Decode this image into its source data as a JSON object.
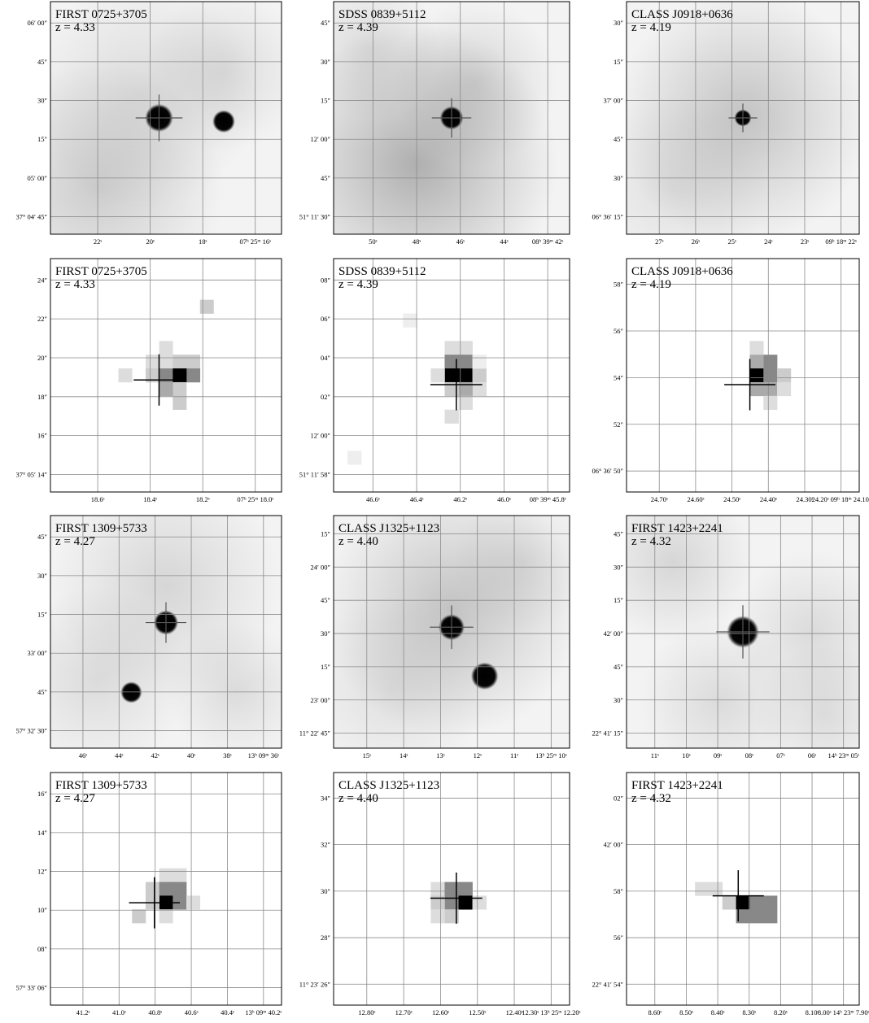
{
  "panels": [
    {
      "id": "p1",
      "kind": "radio",
      "title": "FIRST 0725+3705",
      "redshift": "z = 4.33",
      "y_ticks": [
        "06′ 00″",
        "45″",
        "30″",
        "15″",
        "05′ 00″",
        "37° 04′ 45″"
      ],
      "x_ticks": [
        "22ˢ",
        "20ˢ",
        "18ˢ",
        "07ʰ 25ᵐ 16ˢ"
      ],
      "sources": [
        {
          "u": 0.47,
          "v": 0.5,
          "r": 0.046,
          "cross": true
        },
        {
          "u": 0.75,
          "v": 0.515,
          "r": 0.037,
          "cross": false
        }
      ]
    },
    {
      "id": "p2",
      "kind": "radio",
      "title": "SDSS 0839+5112",
      "redshift": "z = 4.39",
      "y_ticks": [
        "45″",
        "30″",
        "15″",
        "12′ 00″",
        "45″",
        "51° 11′ 30″"
      ],
      "x_ticks": [
        "50ˢ",
        "48ˢ",
        "46ˢ",
        "44ˢ",
        "08ʰ 39ᵐ 42ˢ"
      ],
      "sources": [
        {
          "u": 0.5,
          "v": 0.5,
          "r": 0.038,
          "cross": true
        }
      ]
    },
    {
      "id": "p3",
      "kind": "radio",
      "title": "CLASS J0918+0636",
      "redshift": "z = 4.19",
      "y_ticks": [
        "30″",
        "15″",
        "37′ 00″",
        "45″",
        "30″",
        "06° 36′ 15″"
      ],
      "x_ticks": [
        "27ˢ",
        "26ˢ",
        "25ˢ",
        "24ˢ",
        "23ˢ",
        "09ʰ 18ᵐ 22ˢ"
      ],
      "sources": [
        {
          "u": 0.5,
          "v": 0.5,
          "r": 0.028,
          "cross": true
        }
      ]
    },
    {
      "id": "p4",
      "kind": "pixel",
      "title": "FIRST 0725+3705",
      "redshift": "z = 4.33",
      "y_ticks": [
        "24″",
        "22″",
        "20″",
        "18″",
        "16″",
        "37° 05′ 14″"
      ],
      "x_ticks": [
        "18.6ˢ",
        "18.4ˢ",
        "18.2ˢ",
        "07ʰ 25ᵐ 18.0ˢ"
      ]
    },
    {
      "id": "p5",
      "kind": "pixel",
      "title": "SDSS 0839+5112",
      "redshift": "z = 4.39",
      "y_ticks": [
        "08″",
        "06″",
        "04″",
        "02″",
        "12′ 00″",
        "51° 11′ 58″"
      ],
      "x_ticks": [
        "46.6ˢ",
        "46.4ˢ",
        "46.2ˢ",
        "46.0ˢ",
        "08ʰ 39ᵐ 45.8ˢ"
      ]
    },
    {
      "id": "p6",
      "kind": "pixel",
      "title": "CLASS J0918+0636",
      "redshift": "z = 4.19",
      "y_ticks": [
        "58″",
        "56″",
        "54″",
        "52″",
        "06° 36′ 50″"
      ],
      "x_ticks": [
        "24.70ˢ",
        "24.60ˢ",
        "24.50ˢ",
        "24.40ˢ",
        "24.30ˢ",
        "24.20ˢ 09ʰ 18ᵐ 24.10ˢ"
      ]
    },
    {
      "id": "p7",
      "kind": "radio",
      "title": "FIRST 1309+5733",
      "redshift": "z = 4.27",
      "y_ticks": [
        "45″",
        "30″",
        "15″",
        "33′ 00″",
        "45″",
        "57° 32′ 30″"
      ],
      "x_ticks": [
        "46ˢ",
        "44ˢ",
        "42ˢ",
        "40ˢ",
        "38ˢ",
        "13ʰ 09ᵐ 36ˢ"
      ],
      "sources": [
        {
          "u": 0.5,
          "v": 0.46,
          "r": 0.04,
          "cross": true
        },
        {
          "u": 0.35,
          "v": 0.76,
          "r": 0.035,
          "cross": false
        }
      ]
    },
    {
      "id": "p8",
      "kind": "radio",
      "title": "CLASS J1325+1123",
      "redshift": "z = 4.40",
      "y_ticks": [
        "15″",
        "24′ 00″",
        "45″",
        "30″",
        "15″",
        "23′ 00″",
        "11° 22′ 45″"
      ],
      "x_ticks": [
        "15ˢ",
        "14ˢ",
        "13ˢ",
        "12ˢ",
        "11ˢ",
        "13ʰ 25ᵐ 10ˢ"
      ],
      "sources": [
        {
          "u": 0.5,
          "v": 0.48,
          "r": 0.042,
          "cross": true
        },
        {
          "u": 0.64,
          "v": 0.69,
          "r": 0.044,
          "cross": false
        }
      ]
    },
    {
      "id": "p9",
      "kind": "radio",
      "title": "FIRST 1423+2241",
      "redshift": "z = 4.32",
      "y_ticks": [
        "45″",
        "30″",
        "15″",
        "42′ 00″",
        "45″",
        "30″",
        "22° 41′ 15″"
      ],
      "x_ticks": [
        "11ˢ",
        "10ˢ",
        "09ˢ",
        "08ˢ",
        "07ˢ",
        "06ˢ",
        "14ʰ 23ᵐ 05ˢ"
      ],
      "sources": [
        {
          "u": 0.5,
          "v": 0.5,
          "r": 0.052,
          "cross": true
        }
      ]
    },
    {
      "id": "p10",
      "kind": "pixel",
      "title": "FIRST 1309+5733",
      "redshift": "z = 4.27",
      "y_ticks": [
        "16″",
        "14″",
        "12″",
        "10″",
        "08″",
        "57° 33′ 06″"
      ],
      "x_ticks": [
        "41.2ˢ",
        "41.0ˢ",
        "40.8ˢ",
        "40.6ˢ",
        "40.4ˢ",
        "13ʰ 09ᵐ 40.2ˢ"
      ]
    },
    {
      "id": "p11",
      "kind": "pixel",
      "title": "CLASS J1325+1123",
      "redshift": "z = 4.40",
      "y_ticks": [
        "34″",
        "32″",
        "30″",
        "28″",
        "11° 23′ 26″"
      ],
      "x_ticks": [
        "12.80ˢ",
        "12.70ˢ",
        "12.60ˢ",
        "12.50ˢ",
        "12.40ˢ",
        "12.30ˢ 13ʰ 25ᵐ 12.20ˢ"
      ]
    },
    {
      "id": "p12",
      "kind": "pixel",
      "title": "FIRST 1423+2241",
      "redshift": "z = 4.32",
      "y_ticks": [
        "02″",
        "42′ 00″",
        "58″",
        "56″",
        "22° 41′ 54″"
      ],
      "x_ticks": [
        "8.60ˢ",
        "8.50ˢ",
        "8.40ˢ",
        "8.30ˢ",
        "8.20ˢ",
        "8.10ˢ",
        "8.00ˢ 14ʰ 23ᵐ 7.90ˢ"
      ]
    }
  ]
}
